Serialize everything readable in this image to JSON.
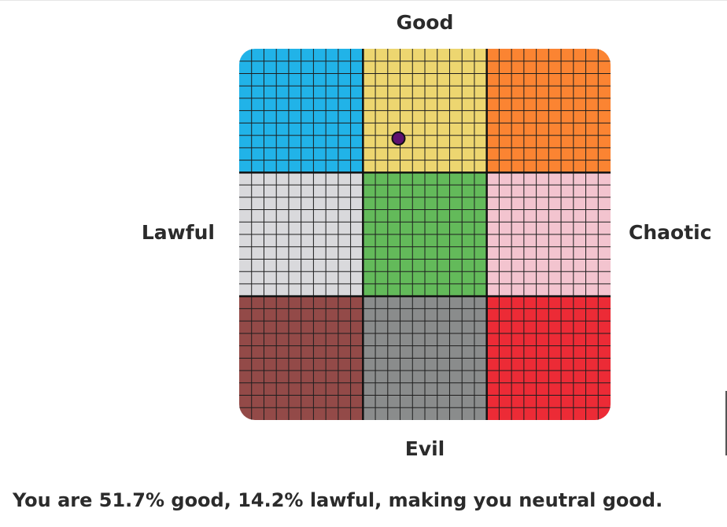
{
  "chart_data": {
    "type": "scatter",
    "title": "",
    "axes": {
      "top": "Good",
      "bottom": "Evil",
      "left": "Lawful",
      "right": "Chaotic"
    },
    "x_range": [
      -100,
      100
    ],
    "y_range": [
      -100,
      100
    ],
    "grid": true,
    "cells": [
      {
        "row": 0,
        "col": 0,
        "color": "#21b3e8"
      },
      {
        "row": 0,
        "col": 1,
        "color": "#edd670"
      },
      {
        "row": 0,
        "col": 2,
        "color": "#fb8432"
      },
      {
        "row": 1,
        "col": 0,
        "color": "#d9d9dc"
      },
      {
        "row": 1,
        "col": 1,
        "color": "#63ba5a"
      },
      {
        "row": 1,
        "col": 2,
        "color": "#f3c4cf"
      },
      {
        "row": 2,
        "col": 0,
        "color": "#934a48"
      },
      {
        "row": 2,
        "col": 1,
        "color": "#8a8c8c"
      },
      {
        "row": 2,
        "col": 2,
        "color": "#ec2b36"
      }
    ],
    "point": {
      "x": -14.2,
      "y": 51.7,
      "color": "#5f1170"
    }
  },
  "result_text": "You are 51.7% good, 14.2% lawful, making you neutral good."
}
